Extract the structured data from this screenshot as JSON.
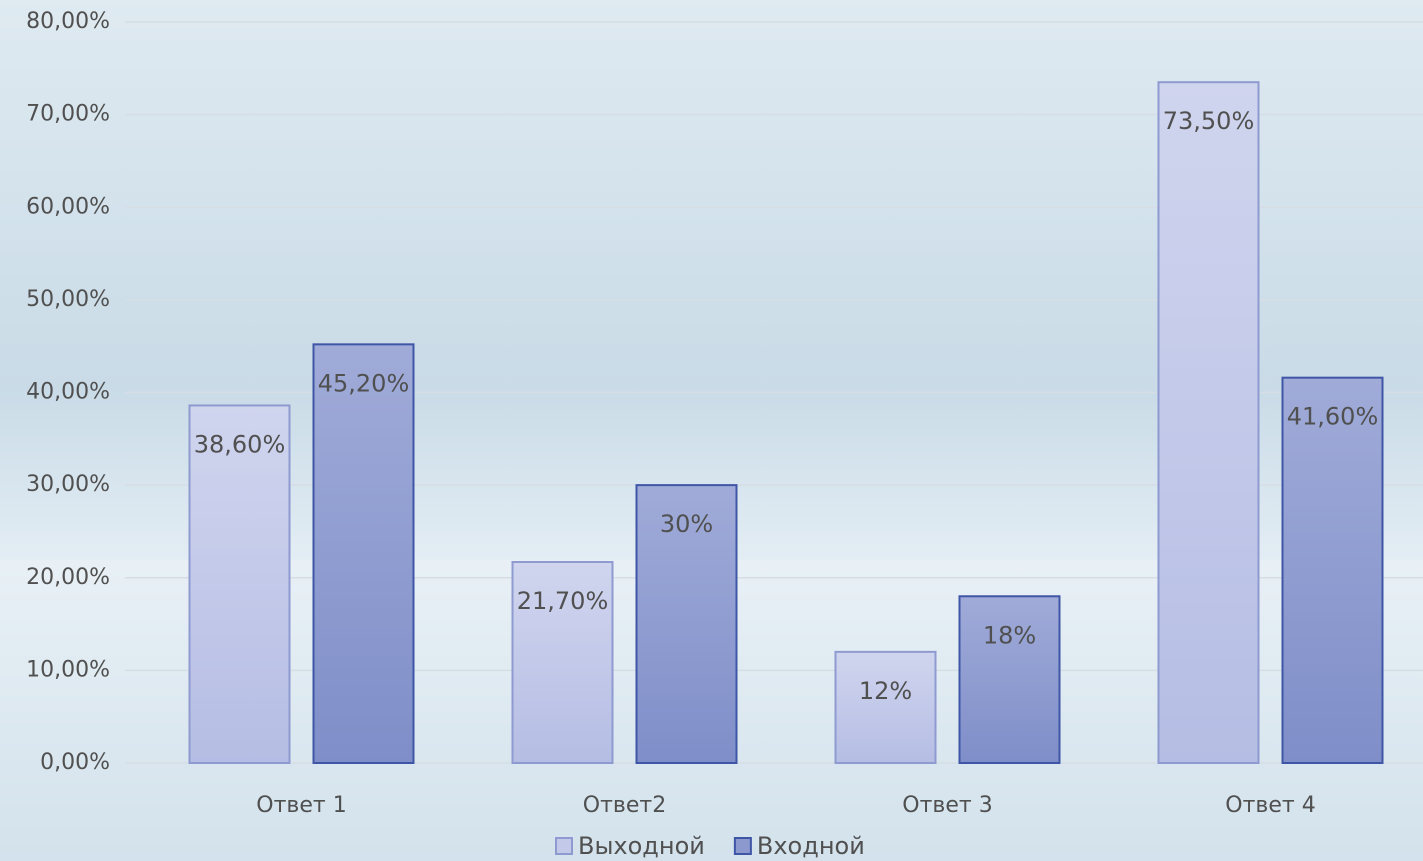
{
  "chart_data": {
    "type": "bar",
    "categories": [
      "Ответ 1",
      "Ответ2",
      "Ответ 3",
      "Ответ 4"
    ],
    "series": [
      {
        "name": "Выходной",
        "color": "#c3c9e8",
        "values": [
          38.6,
          21.7,
          12,
          73.5
        ],
        "value_labels": [
          "38,60%",
          "21,70%",
          "12%",
          "73,50%"
        ]
      },
      {
        "name": "Входной",
        "color": "#8c99cf",
        "values": [
          45.2,
          30,
          18,
          41.6
        ],
        "value_labels": [
          "45,20%",
          "30%",
          "18%",
          "41,60%"
        ]
      }
    ],
    "ylim": [
      0,
      80
    ],
    "yticks": [
      {
        "value": 0,
        "label": "0,00%"
      },
      {
        "value": 10,
        "label": "10,00%"
      },
      {
        "value": 20,
        "label": "20,00%"
      },
      {
        "value": 30,
        "label": "30,00%"
      },
      {
        "value": 40,
        "label": "40,00%"
      },
      {
        "value": 50,
        "label": "50,00%"
      },
      {
        "value": 60,
        "label": "60,00%"
      },
      {
        "value": 70,
        "label": "70,00%"
      },
      {
        "value": 80,
        "label": "80,00%"
      }
    ],
    "grid": true,
    "legend": "bottom"
  }
}
